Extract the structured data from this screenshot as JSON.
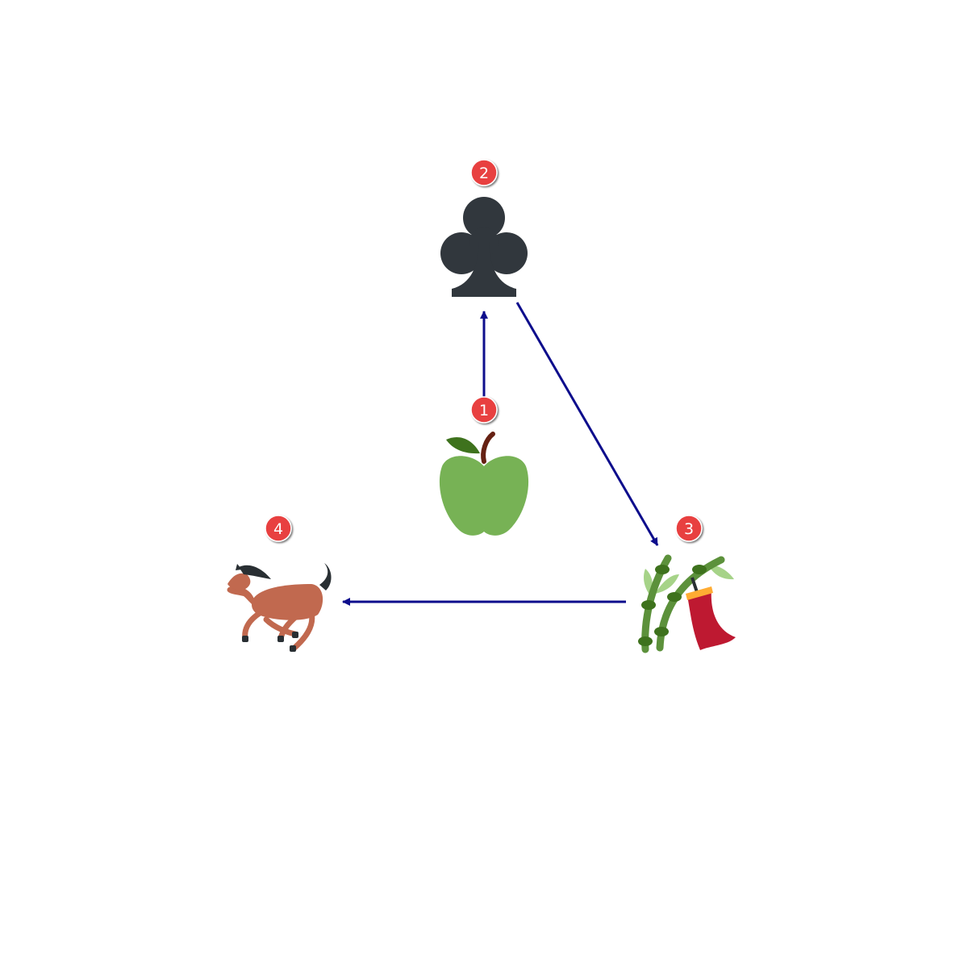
{
  "nodes": [
    {
      "id": "1",
      "badge": "1",
      "icon": "green-apple-icon"
    },
    {
      "id": "2",
      "badge": "2",
      "icon": "club-suit-icon"
    },
    {
      "id": "3",
      "badge": "3",
      "icon": "tanabata-tree-icon"
    },
    {
      "id": "4",
      "badge": "4",
      "icon": "horse-racing-icon"
    }
  ],
  "edges": [
    {
      "from": "1",
      "to": "2"
    },
    {
      "from": "2",
      "to": "3"
    },
    {
      "from": "3",
      "to": "4"
    }
  ],
  "colors": {
    "edge": "#0d0d8c",
    "badge_fill": "#e8403f",
    "badge_text": "#ffffff",
    "apple": "#77b255",
    "club": "#31373d",
    "bamboo": "#5c913b",
    "tanzaku": "#be1931",
    "horse": "#c1694f"
  }
}
